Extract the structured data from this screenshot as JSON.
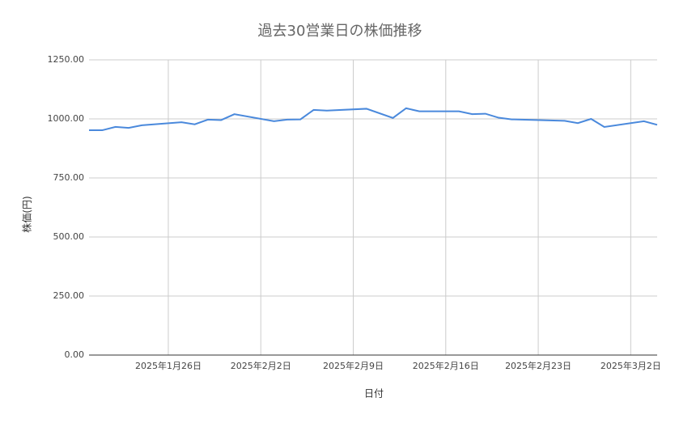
{
  "chart_data": {
    "type": "line",
    "title": "過去30営業日の株価推移",
    "x_label": "日付",
    "y_label": "株価(円)",
    "x": [
      "2025-01-20",
      "2025-01-21",
      "2025-01-22",
      "2025-01-23",
      "2025-01-24",
      "2025-01-27",
      "2025-01-28",
      "2025-01-29",
      "2025-01-30",
      "2025-01-31",
      "2025-02-03",
      "2025-02-04",
      "2025-02-05",
      "2025-02-06",
      "2025-02-07",
      "2025-02-10",
      "2025-02-12",
      "2025-02-13",
      "2025-02-14",
      "2025-02-17",
      "2025-02-18",
      "2025-02-19",
      "2025-02-20",
      "2025-02-21",
      "2025-02-25",
      "2025-02-26",
      "2025-02-27",
      "2025-02-28",
      "2025-03-03",
      "2025-03-04"
    ],
    "series": [
      {
        "name": "株価",
        "color": "#4a89dc",
        "values": [
          952,
          952,
          966,
          962,
          973,
          986,
          977,
          997,
          995,
          1020,
          990,
          997,
          998,
          1038,
          1035,
          1043,
          1004,
          1045,
          1032,
          1032,
          1020,
          1022,
          1005,
          998,
          992,
          982,
          1000,
          966,
          990,
          975
        ]
      }
    ],
    "xlim": [
      "2025-01-20",
      "2025-03-04"
    ],
    "xticks": [
      {
        "value": "2025-01-26",
        "label": "2025年1月26日"
      },
      {
        "value": "2025-02-02",
        "label": "2025年2月2日"
      },
      {
        "value": "2025-02-09",
        "label": "2025年2月9日"
      },
      {
        "value": "2025-02-16",
        "label": "2025年2月16日"
      },
      {
        "value": "2025-02-23",
        "label": "2025年2月23日"
      },
      {
        "value": "2025-03-02",
        "label": "2025年3月2日"
      }
    ],
    "ylim": [
      0,
      1250
    ],
    "yticks": [
      {
        "value": 0,
        "label": "0.00"
      },
      {
        "value": 250,
        "label": "250.00"
      },
      {
        "value": 500,
        "label": "500.00"
      },
      {
        "value": 750,
        "label": "750.00"
      },
      {
        "value": 1000,
        "label": "1000.00"
      },
      {
        "value": 1250,
        "label": "1250.00"
      }
    ],
    "grid": true
  }
}
